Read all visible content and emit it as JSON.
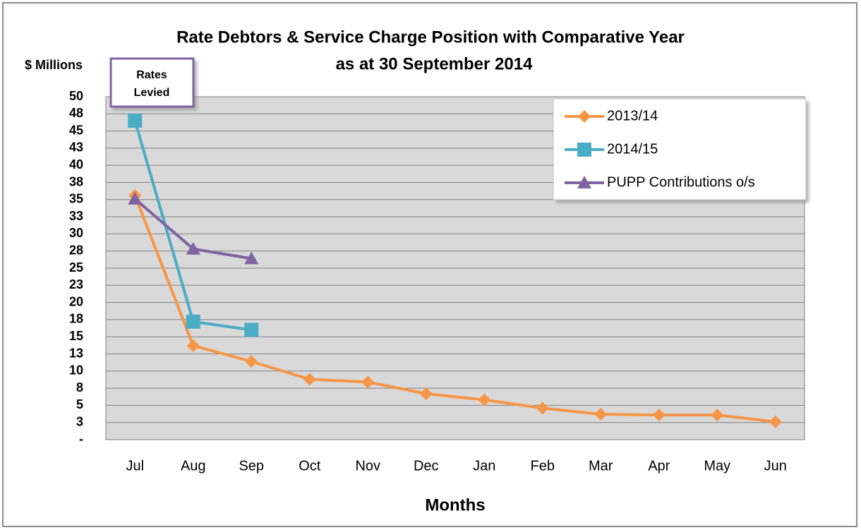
{
  "chart_data": {
    "type": "line",
    "title": "Rate Debtors & Service Charge Position with Comparative Year",
    "subtitle": "as at 30 September 2014",
    "ylabel": "$ Millions",
    "xlabel": "Months",
    "annotation": [
      "Rates",
      "Levied"
    ],
    "categories": [
      "Jul",
      "Aug",
      "Sep",
      "Oct",
      "Nov",
      "Dec",
      "Jan",
      "Feb",
      "Mar",
      "Apr",
      "May",
      "Jun"
    ],
    "series": [
      {
        "name": "2013/14",
        "color": "#f79646",
        "marker": "diamond",
        "values": [
          35.6,
          13.7,
          11.4,
          8.8,
          8.4,
          6.7,
          5.8,
          4.6,
          3.7,
          3.6,
          3.6,
          2.6
        ]
      },
      {
        "name": "2014/15",
        "color": "#4bacc6",
        "marker": "square",
        "values": [
          46.5,
          17.2,
          16.0,
          null,
          null,
          null,
          null,
          null,
          null,
          null,
          null,
          null
        ]
      },
      {
        "name": "PUPP Contributions o/s",
        "color": "#8064a2",
        "marker": "triangle",
        "values": [
          35.1,
          27.8,
          26.4,
          null,
          null,
          null,
          null,
          null,
          null,
          null,
          null,
          null
        ]
      }
    ],
    "ylim": [
      0,
      50
    ],
    "yticks": [
      {
        "value": 0,
        "label": "-"
      },
      {
        "value": 2.5,
        "label": "3"
      },
      5,
      {
        "value": 7.5,
        "label": "8"
      },
      10,
      {
        "value": 12.5,
        "label": "13"
      },
      15,
      {
        "value": 17.5,
        "label": "18"
      },
      20,
      {
        "value": 22.5,
        "label": "23"
      },
      25,
      {
        "value": 27.5,
        "label": "28"
      },
      30,
      {
        "value": 32.5,
        "label": "33"
      },
      35,
      {
        "value": 37.5,
        "label": "38"
      },
      40,
      {
        "value": 42.5,
        "label": "43"
      },
      45,
      {
        "value": 47.5,
        "label": "48"
      },
      50
    ],
    "grid": true,
    "legend": "upper right"
  }
}
